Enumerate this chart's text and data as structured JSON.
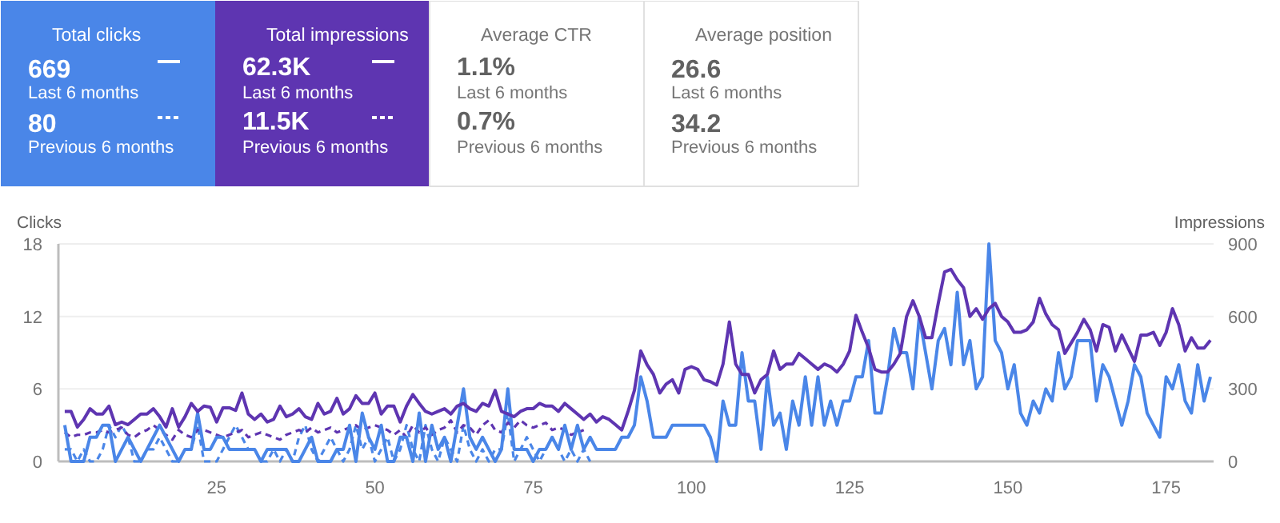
{
  "chart_data": [
    {
      "type": "other",
      "colors": [
        "#4a86e8",
        "#5e35b1",
        null,
        null
      ],
      "annotations": [
        "Total clicks",
        "669",
        "Last 6 months",
        "80",
        "Previous 6 months",
        "Total impressions",
        "62.3K",
        "Last 6 months",
        "11.5K",
        "Previous 6 months",
        "Average CTR",
        "1.1%",
        "Last 6 months",
        "0.7%",
        "Previous 6 months",
        "Average position",
        "26.6",
        "Last 6 months",
        "34.2",
        "Previous 6 months"
      ]
    },
    {
      "type": "line",
      "ylabel": "Clicks",
      "y2label": "Impressions",
      "xlim": [
        0,
        182.5
      ],
      "xticks": [
        25,
        50,
        75,
        100,
        125,
        150,
        175
      ],
      "ylim": [
        0,
        18
      ],
      "yticks": [
        0,
        6,
        12,
        18
      ],
      "y2lim": [
        0,
        900
      ],
      "y2ticks": [
        0,
        300,
        600,
        900
      ],
      "grid": "y",
      "series": [
        {
          "color": "#4a86e8",
          "line_style": "dashed",
          "x": [
            1,
            2,
            3,
            4,
            5,
            6,
            7,
            8,
            9,
            10,
            11,
            12,
            13,
            14,
            15,
            16,
            17,
            18,
            19,
            20,
            21,
            22,
            23,
            24,
            25,
            26,
            27,
            28,
            29,
            30,
            31,
            32,
            33,
            34,
            35,
            36,
            37,
            38,
            39,
            40,
            41,
            42,
            43,
            44,
            45,
            46,
            47,
            48,
            49,
            50,
            51,
            52,
            53,
            54,
            55,
            56,
            57,
            58,
            59,
            60,
            61,
            62,
            63,
            64,
            65,
            66,
            67,
            68,
            69,
            70,
            71,
            72,
            73,
            74,
            75,
            76,
            77,
            78,
            79,
            80,
            81,
            82,
            83,
            84
          ],
          "values": [
            1,
            1,
            0,
            1,
            0,
            0,
            1,
            3,
            2,
            3,
            2,
            0,
            0,
            1,
            1,
            2,
            1,
            0,
            0,
            1,
            1,
            3,
            0,
            0,
            0,
            1,
            2,
            3,
            2,
            1,
            1,
            0,
            0,
            1,
            0,
            1,
            0,
            2,
            3,
            1,
            0,
            1,
            2,
            1,
            0,
            1,
            3,
            1,
            2,
            0,
            1,
            2,
            0,
            1,
            3,
            1,
            0,
            3,
            1,
            0,
            2,
            1,
            0,
            3,
            1,
            0,
            1,
            0,
            1,
            1,
            4,
            0,
            1,
            2,
            1,
            0,
            1,
            2,
            1,
            0,
            1,
            0,
            1,
            0
          ]
        },
        {
          "color": "#5e35b1",
          "line_style": "dashed",
          "axis": "y2",
          "x": [
            1,
            2,
            3,
            4,
            5,
            6,
            7,
            8,
            9,
            10,
            11,
            12,
            13,
            14,
            15,
            16,
            17,
            18,
            19,
            20,
            21,
            22,
            23,
            24,
            25,
            26,
            27,
            28,
            29,
            30,
            31,
            32,
            33,
            34,
            35,
            36,
            37,
            38,
            39,
            40,
            41,
            42,
            43,
            44,
            45,
            46,
            47,
            48,
            49,
            50,
            51,
            52,
            53,
            54,
            55,
            56,
            57,
            58,
            59,
            60,
            61,
            62,
            63,
            64,
            65,
            66,
            67,
            68,
            69,
            70,
            71,
            72,
            73,
            74,
            75,
            76,
            77,
            78,
            79,
            80,
            81,
            82,
            83
          ],
          "values": [
            120,
            100,
            110,
            110,
            120,
            120,
            130,
            120,
            130,
            140,
            110,
            100,
            120,
            130,
            150,
            130,
            110,
            90,
            130,
            110,
            100,
            130,
            130,
            120,
            110,
            100,
            110,
            120,
            130,
            100,
            110,
            120,
            110,
            100,
            90,
            110,
            120,
            130,
            120,
            140,
            120,
            130,
            140,
            120,
            130,
            140,
            150,
            130,
            140,
            150,
            140,
            130,
            110,
            130,
            100,
            150,
            120,
            140,
            110,
            130,
            140,
            170,
            120,
            150,
            140,
            110,
            150,
            170,
            130,
            120,
            160,
            140,
            170,
            150,
            140,
            150,
            160,
            130,
            140,
            130,
            110,
            120,
            130
          ]
        },
        {
          "color": "#4a86e8",
          "line_style": "solid",
          "x": [
            1,
            2,
            3,
            4,
            5,
            6,
            7,
            8,
            9,
            10,
            11,
            12,
            13,
            14,
            15,
            16,
            17,
            18,
            19,
            20,
            21,
            22,
            23,
            24,
            25,
            26,
            27,
            28,
            29,
            30,
            31,
            32,
            33,
            34,
            35,
            36,
            37,
            38,
            39,
            40,
            41,
            42,
            43,
            44,
            45,
            46,
            47,
            48,
            49,
            50,
            51,
            52,
            53,
            54,
            55,
            56,
            57,
            58,
            59,
            60,
            61,
            62,
            63,
            64,
            65,
            66,
            67,
            68,
            69,
            70,
            71,
            72,
            73,
            74,
            75,
            76,
            77,
            78,
            79,
            80,
            81,
            82,
            83,
            84,
            85,
            86,
            87,
            88,
            89,
            90,
            91,
            92,
            93,
            94,
            95,
            96,
            97,
            98,
            99,
            100,
            101,
            102,
            103,
            104,
            105,
            106,
            107,
            108,
            109,
            110,
            111,
            112,
            113,
            114,
            115,
            116,
            117,
            118,
            119,
            120,
            121,
            122,
            123,
            124,
            125,
            126,
            127,
            128,
            129,
            130,
            131,
            132,
            133,
            134,
            135,
            136,
            137,
            138,
            139,
            140,
            141,
            142,
            143,
            144,
            145,
            146,
            147,
            148,
            149,
            150,
            151,
            152,
            153,
            154,
            155,
            156,
            157,
            158,
            159,
            160,
            161,
            162,
            163,
            164,
            165,
            166,
            167,
            168,
            169,
            170,
            171,
            172,
            173,
            174,
            175,
            176,
            177,
            178,
            179,
            180,
            181,
            182
          ],
          "values": [
            3,
            0,
            0,
            0,
            2,
            2,
            3,
            3,
            0,
            1,
            2,
            1,
            0,
            1,
            2,
            3,
            2,
            1,
            0,
            1,
            1,
            4,
            1,
            1,
            2,
            2,
            1,
            1,
            1,
            1,
            1,
            0,
            1,
            1,
            1,
            1,
            0,
            0,
            1,
            2,
            0,
            0,
            0,
            1,
            1,
            3,
            0,
            4,
            2,
            1,
            3,
            0,
            0,
            2,
            2,
            0,
            4,
            0,
            3,
            1,
            2,
            0,
            3,
            6,
            2,
            1,
            2,
            1,
            0,
            1,
            6,
            1,
            1,
            1,
            0,
            1,
            1,
            2,
            1,
            3,
            1,
            3,
            1,
            2,
            1,
            1,
            1,
            1,
            2,
            2,
            3,
            7,
            5,
            2,
            2,
            2,
            3,
            3,
            3,
            3,
            3,
            3,
            2,
            0,
            5,
            3,
            3,
            9,
            5,
            5,
            1,
            7,
            3,
            4,
            1,
            5,
            3,
            7,
            3,
            7,
            3,
            5,
            3,
            5,
            5,
            7,
            7,
            10,
            4,
            4,
            7,
            11,
            9,
            9,
            6,
            12,
            9,
            6,
            10,
            11,
            8,
            14,
            8,
            10,
            6,
            7,
            18,
            10,
            9,
            6,
            8,
            4,
            3,
            5,
            4,
            6,
            5,
            9,
            6,
            7,
            10,
            10,
            10,
            5,
            8,
            7,
            5,
            3,
            5,
            8,
            7,
            4,
            3,
            2,
            7,
            6,
            8,
            5,
            4,
            8,
            5,
            7
          ]
        },
        {
          "color": "#5e35b1",
          "line_style": "solid",
          "axis": "y2",
          "x": [
            1,
            2,
            3,
            4,
            5,
            6,
            7,
            8,
            9,
            10,
            11,
            12,
            13,
            14,
            15,
            16,
            17,
            18,
            19,
            20,
            21,
            22,
            23,
            24,
            25,
            26,
            27,
            28,
            29,
            30,
            31,
            32,
            33,
            34,
            35,
            36,
            37,
            38,
            39,
            40,
            41,
            42,
            43,
            44,
            45,
            46,
            47,
            48,
            49,
            50,
            51,
            52,
            53,
            54,
            55,
            56,
            57,
            58,
            59,
            60,
            61,
            62,
            63,
            64,
            65,
            66,
            67,
            68,
            69,
            70,
            71,
            72,
            73,
            74,
            75,
            76,
            77,
            78,
            79,
            80,
            81,
            82,
            83,
            84,
            85,
            86,
            87,
            88,
            89,
            90,
            91,
            92,
            93,
            94,
            95,
            96,
            97,
            98,
            99,
            100,
            101,
            102,
            103,
            104,
            105,
            106,
            107,
            108,
            109,
            110,
            111,
            112,
            113,
            114,
            115,
            116,
            117,
            118,
            119,
            120,
            121,
            122,
            123,
            124,
            125,
            126,
            127,
            128,
            129,
            130,
            131,
            132,
            133,
            134,
            135,
            136,
            137,
            138,
            139,
            140,
            141,
            142,
            143,
            144,
            145,
            146,
            147,
            148,
            149,
            150,
            151,
            152,
            153,
            154,
            155,
            156,
            157,
            158,
            159,
            160,
            161,
            162,
            163,
            164,
            165,
            166,
            167,
            168,
            169,
            170,
            171,
            172,
            173,
            174,
            175,
            176,
            177,
            178,
            179,
            180,
            181,
            182
          ],
          "values": [
            207,
            207,
            142,
            174,
            218,
            196,
            196,
            229,
            152,
            163,
            152,
            174,
            196,
            196,
            218,
            185,
            142,
            218,
            142,
            185,
            240,
            207,
            229,
            224,
            163,
            222,
            222,
            211,
            283,
            196,
            174,
            196,
            163,
            174,
            229,
            185,
            196,
            218,
            185,
            174,
            240,
            196,
            207,
            261,
            196,
            218,
            272,
            240,
            240,
            283,
            196,
            229,
            229,
            163,
            229,
            277,
            240,
            207,
            196,
            207,
            218,
            196,
            229,
            240,
            218,
            207,
            240,
            229,
            294,
            207,
            196,
            185,
            207,
            218,
            218,
            240,
            229,
            229,
            207,
            240,
            218,
            196,
            174,
            196,
            163,
            185,
            174,
            152,
            130,
            207,
            294,
            457,
            400,
            360,
            283,
            320,
            338,
            283,
            381,
            392,
            381,
            338,
            330,
            316,
            403,
            577,
            403,
            360,
            360,
            283,
            338,
            360,
            457,
            381,
            403,
            403,
            447,
            425,
            403,
            381,
            403,
            392,
            370,
            403,
            457,
            605,
            534,
            469,
            381,
            370,
            370,
            403,
            447,
            600,
            665,
            600,
            512,
            512,
            654,
            784,
            795,
            752,
            719,
            600,
            632,
            588,
            632,
            654,
            600,
            577,
            534,
            534,
            545,
            577,
            675,
            610,
            566,
            545,
            447,
            490,
            534,
            588,
            545,
            457,
            566,
            555,
            457,
            523,
            469,
            414,
            523,
            523,
            534,
            480,
            534,
            632,
            566,
            457,
            512,
            469,
            469,
            501
          ]
        }
      ]
    }
  ]
}
